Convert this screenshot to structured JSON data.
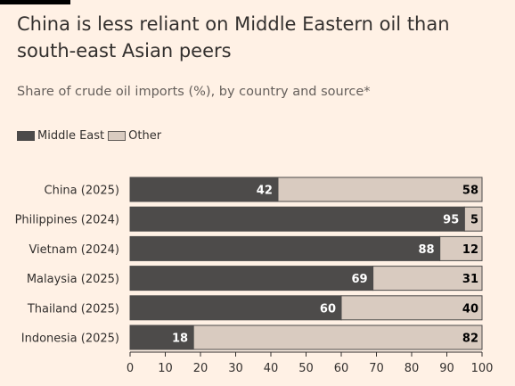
{
  "colors": {
    "background": "#fff1e5",
    "middle_east": "#4d4b4a",
    "other": "#d9cbc0",
    "text": "#33302e"
  },
  "chart_data": {
    "type": "bar",
    "orientation": "horizontal",
    "stacked": true,
    "title": "China is less reliant on Middle Eastern oil than south-east Asian peers",
    "subtitle": "Share of crude oil imports (%), by country and source*",
    "categories": [
      "China (2025)",
      "Philippines (2024)",
      "Vietnam (2024)",
      "Malaysia (2025)",
      "Thailand (2025)",
      "Indonesia (2025)"
    ],
    "series": [
      {
        "name": "Middle East",
        "values": [
          42,
          95,
          88,
          69,
          60,
          18
        ]
      },
      {
        "name": "Other",
        "values": [
          58,
          5,
          12,
          31,
          40,
          82
        ]
      }
    ],
    "xlim": [
      0,
      100
    ],
    "xticks": [
      0,
      10,
      20,
      30,
      40,
      50,
      60,
      70,
      80,
      90,
      100
    ],
    "legend_position": "top-left",
    "grid": false
  }
}
